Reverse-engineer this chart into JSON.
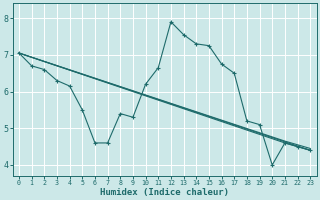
{
  "bg_color": "#cce8e8",
  "grid_color": "#ffffff",
  "line_color": "#1e6b6b",
  "xlabel": "Humidex (Indice chaleur)",
  "xlim": [
    -0.5,
    23.5
  ],
  "ylim": [
    3.7,
    8.4
  ],
  "xticks": [
    0,
    1,
    2,
    3,
    4,
    5,
    6,
    7,
    8,
    9,
    10,
    11,
    12,
    13,
    14,
    15,
    16,
    17,
    18,
    19,
    20,
    21,
    22,
    23
  ],
  "yticks": [
    4,
    5,
    6,
    7,
    8
  ],
  "line_main": {
    "x": [
      0,
      1,
      2,
      3,
      4,
      5,
      6,
      7,
      8,
      9,
      10,
      11,
      12,
      13,
      14,
      15,
      16,
      17,
      18,
      19,
      20,
      21,
      22,
      23
    ],
    "y": [
      7.05,
      6.7,
      6.6,
      6.3,
      6.15,
      5.5,
      4.6,
      4.6,
      5.4,
      5.3,
      6.2,
      6.65,
      7.9,
      7.55,
      7.3,
      7.25,
      6.75,
      6.5,
      5.2,
      5.1,
      4.0,
      4.6,
      4.5,
      4.4
    ]
  },
  "line_straight1": {
    "x": [
      0,
      21,
      22,
      23
    ],
    "y": [
      7.05,
      4.6,
      4.5,
      4.4
    ]
  },
  "line_straight2": {
    "x": [
      0,
      21,
      22,
      23
    ],
    "y": [
      7.05,
      4.65,
      4.55,
      4.45
    ]
  },
  "line_straight3": {
    "x": [
      0,
      23
    ],
    "y": [
      7.05,
      4.4
    ]
  }
}
